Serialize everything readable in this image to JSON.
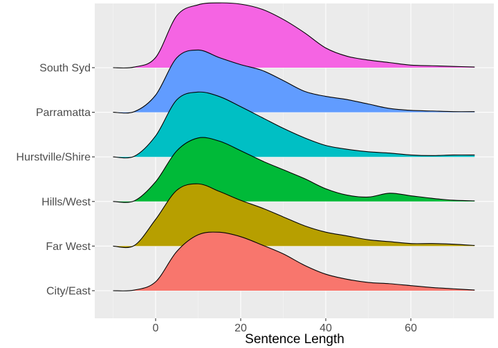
{
  "chart_data": {
    "type": "area",
    "subtype": "ridgeline",
    "title": "",
    "xlabel": "Sentence Length",
    "ylabel": "",
    "xlim": [
      -14,
      80
    ],
    "x_ticks": [
      0,
      20,
      40,
      60
    ],
    "grid": true,
    "legend": "none",
    "x": [
      -10,
      -5,
      0,
      5,
      10,
      15,
      20,
      25,
      30,
      35,
      40,
      45,
      50,
      55,
      60,
      65,
      70,
      75
    ],
    "series": [
      {
        "name": "City/East",
        "color": "#F8766D",
        "density": [
          0.0,
          0.01,
          0.14,
          0.62,
          0.88,
          0.92,
          0.85,
          0.72,
          0.58,
          0.4,
          0.26,
          0.18,
          0.13,
          0.11,
          0.08,
          0.05,
          0.03,
          0.01
        ]
      },
      {
        "name": "Far West",
        "color": "#B79F00",
        "density": [
          0.0,
          0.01,
          0.42,
          0.88,
          0.98,
          0.86,
          0.72,
          0.6,
          0.46,
          0.32,
          0.22,
          0.16,
          0.1,
          0.07,
          0.04,
          0.04,
          0.03,
          0.01
        ]
      },
      {
        "name": "Hills/West",
        "color": "#00BA38",
        "density": [
          0.0,
          0.01,
          0.31,
          0.8,
          1.0,
          0.95,
          0.8,
          0.64,
          0.5,
          0.36,
          0.2,
          0.1,
          0.07,
          0.13,
          0.09,
          0.05,
          0.02,
          0.01
        ]
      },
      {
        "name": "Hurstville/Shire",
        "color": "#00BFC4",
        "density": [
          0.0,
          0.01,
          0.33,
          0.9,
          1.02,
          0.95,
          0.79,
          0.62,
          0.45,
          0.3,
          0.18,
          0.12,
          0.08,
          0.06,
          0.03,
          0.02,
          0.03,
          0.03
        ]
      },
      {
        "name": "Parramatta",
        "color": "#619CFF",
        "density": [
          0.0,
          0.01,
          0.27,
          0.86,
          0.98,
          0.86,
          0.75,
          0.66,
          0.5,
          0.33,
          0.25,
          0.2,
          0.13,
          0.06,
          0.03,
          0.02,
          0.01,
          0.01
        ]
      },
      {
        "name": "South Syd",
        "color": "#F564E3",
        "density": [
          0.0,
          0.01,
          0.16,
          0.82,
          0.99,
          1.02,
          1.0,
          0.92,
          0.76,
          0.55,
          0.31,
          0.18,
          0.12,
          0.08,
          0.04,
          0.03,
          0.02,
          0.01
        ]
      }
    ]
  }
}
